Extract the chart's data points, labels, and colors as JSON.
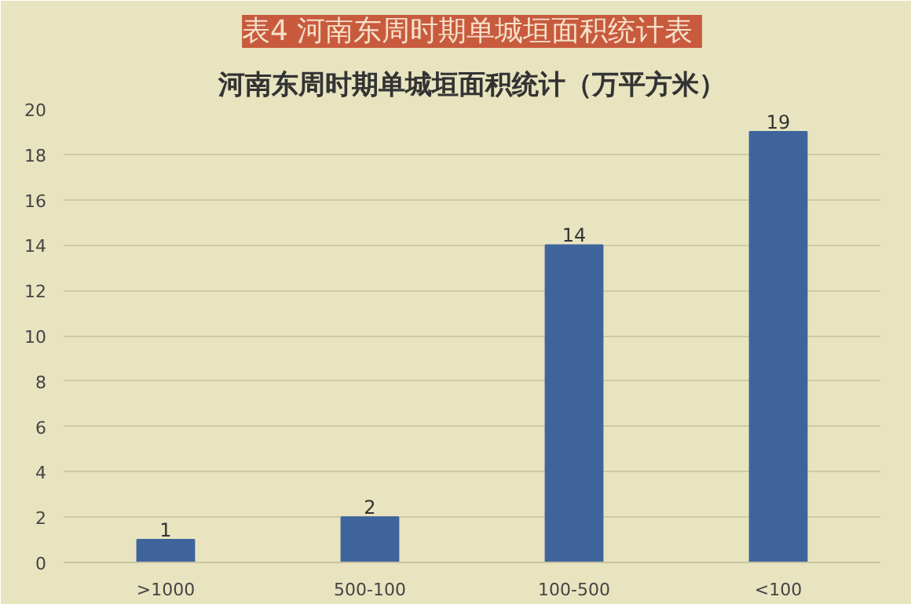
{
  "chart_data": {
    "type": "bar",
    "title": "表4  河南东周时期单城垣面积统计表",
    "subtitle": "河南东周时期单城垣面积统计（万平方米）",
    "categories": [
      ">1000",
      "500-100",
      "100-500",
      "<100"
    ],
    "values": [
      1,
      2,
      14,
      19
    ],
    "color": "#3f649c",
    "data_labels": true,
    "ylim": [
      0,
      20
    ],
    "yticks": [
      0,
      2,
      4,
      6,
      8,
      10,
      12,
      14,
      16,
      18,
      20
    ],
    "grid": "y"
  }
}
